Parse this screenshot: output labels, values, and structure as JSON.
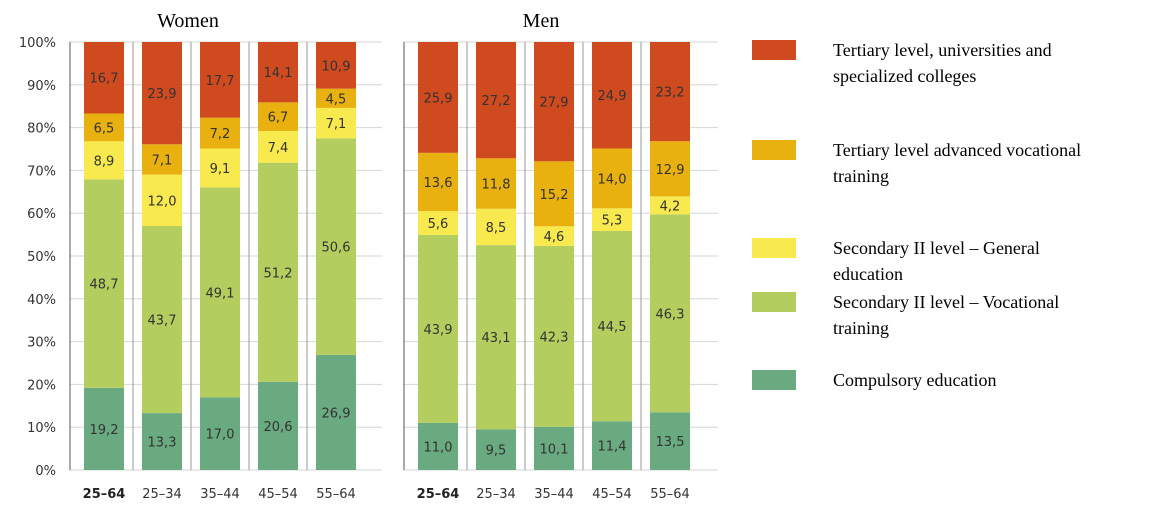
{
  "chart_data": {
    "type": "bar",
    "stacked": true,
    "y_axis": {
      "ylim": [
        0,
        100
      ],
      "ticks": [
        "0%",
        "10%",
        "20%",
        "30%",
        "40%",
        "50%",
        "60%",
        "70%",
        "80%",
        "90%",
        "100%"
      ],
      "grid": true
    },
    "series": [
      {
        "name": "Compulsory education",
        "color": "#6aaa80"
      },
      {
        "name": "Secondary II level – Vocational training",
        "color": "#b4cd5f"
      },
      {
        "name": "Secondary II level – General education",
        "color": "#f7e94e"
      },
      {
        "name": "Tertiary level advanced vocational training",
        "color": "#e8b10f"
      },
      {
        "name": "Tertiary level, universities and specialized colleges",
        "color": "#cf4a1f"
      }
    ],
    "panels": [
      {
        "title": "Women",
        "categories": [
          "25–64",
          "25–34",
          "35–44",
          "45–54",
          "55–64"
        ],
        "bold_category": "25–64",
        "values": [
          [
            "19,2",
            "48,7",
            "8,9",
            "6,5",
            "16,7"
          ],
          [
            "13,3",
            "43,7",
            "12,0",
            "7,1",
            "23,9"
          ],
          [
            "17,0",
            "49,1",
            "9,1",
            "7,2",
            "17,7"
          ],
          [
            "20,6",
            "51,2",
            "7,4",
            "6,7",
            "14,1"
          ],
          [
            "26,9",
            "50,6",
            "7,1",
            "4,5",
            "10,9"
          ]
        ]
      },
      {
        "title": "Men",
        "categories": [
          "25–64",
          "25–34",
          "35–44",
          "45–54",
          "55–64"
        ],
        "bold_category": "25–64",
        "values": [
          [
            "11,0",
            "43,9",
            "5,6",
            "13,6",
            "25,9"
          ],
          [
            "9,5",
            "43,1",
            "8,5",
            "11,8",
            "27,2"
          ],
          [
            "10,1",
            "42,3",
            "4,6",
            "15,2",
            "27,9"
          ],
          [
            "11,4",
            "44,5",
            "5,3",
            "14,0",
            "24,9"
          ],
          [
            "13,5",
            "46,3",
            "4,2",
            "12,9",
            "23,2"
          ]
        ]
      }
    ],
    "legend": {
      "placement": "right",
      "order": [
        4,
        3,
        2,
        1,
        0
      ],
      "lines": [
        [
          "Tertiary level, universities and",
          "specialized colleges"
        ],
        [
          "Tertiary level advanced vocational",
          "training"
        ],
        [
          "Secondary II level – General",
          "education"
        ],
        [
          "Secondary II level – Vocational",
          "training"
        ],
        [
          "Compulsory education"
        ]
      ]
    }
  }
}
